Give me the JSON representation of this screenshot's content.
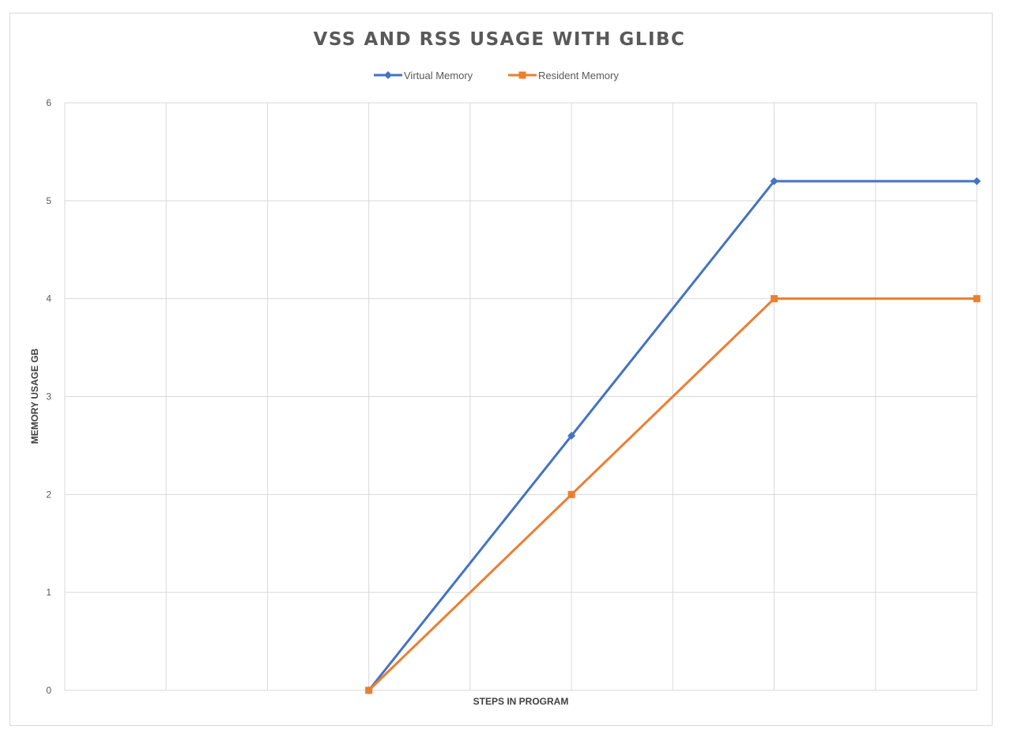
{
  "chart_data": {
    "type": "line",
    "title": "VSS AND RSS USAGE WITH GLIBC",
    "xlabel": "STEPS IN PROGRAM",
    "ylabel": "MEMORY USAGE GB",
    "ylim": [
      0,
      6
    ],
    "yticks": [
      "0",
      "1",
      "2",
      "3",
      "4",
      "5",
      "6"
    ],
    "x_categories": 9,
    "grid": true,
    "legend_position": "top",
    "series": [
      {
        "name": "Virtual Memory",
        "color": "#4472c4",
        "marker": "diamond",
        "points": [
          [
            3,
            0
          ],
          [
            5,
            2.6
          ],
          [
            7,
            5.2
          ],
          [
            9,
            5.2
          ]
        ]
      },
      {
        "name": "Resident Memory",
        "color": "#ed7d31",
        "marker": "square",
        "points": [
          [
            3,
            0
          ],
          [
            5,
            2.0
          ],
          [
            7,
            4.0
          ],
          [
            9,
            4.0
          ]
        ]
      }
    ]
  }
}
